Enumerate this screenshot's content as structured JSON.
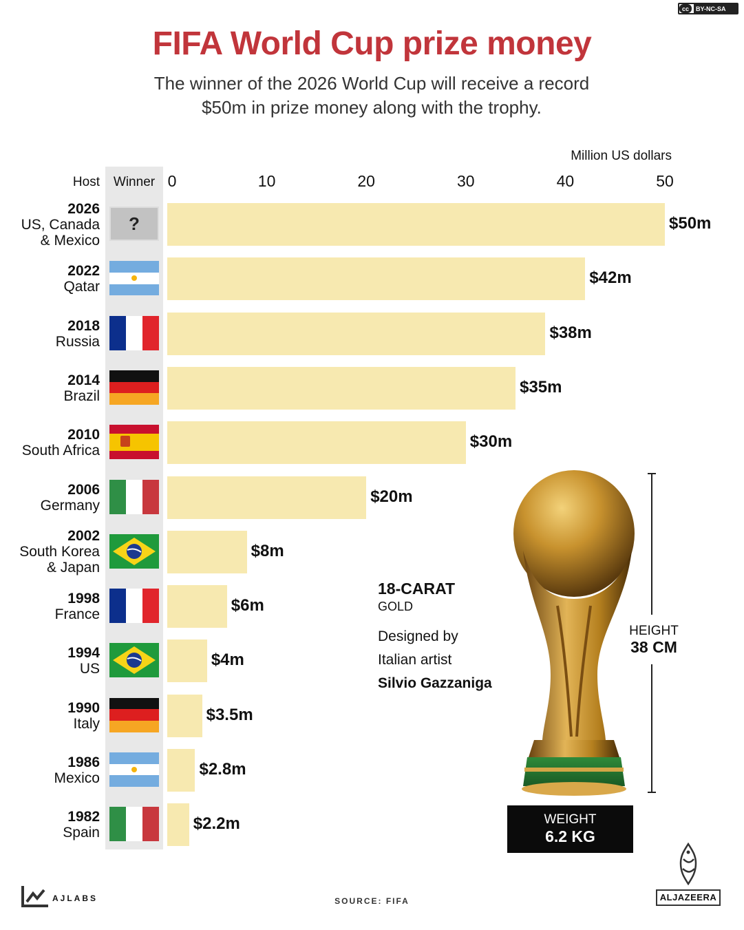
{
  "license": "BY-NC-SA",
  "title": "FIFA World Cup prize money",
  "subtitle_line1": "The winner of the 2026 World Cup will receive a record",
  "subtitle_line2": "$50m in prize money along with the trophy.",
  "headers": {
    "host": "Host",
    "winner": "Winner"
  },
  "unknown_winner": "?",
  "chart_data": {
    "type": "bar",
    "orientation": "horizontal",
    "unit_label": "Million US dollars",
    "xticks": [
      0,
      10,
      20,
      30,
      40,
      50
    ],
    "xlim": [
      0,
      50
    ],
    "grid": false,
    "rows": [
      {
        "year": "2026",
        "host_lines": [
          "US, Canada",
          "& Mexico"
        ],
        "winner": "unknown",
        "value": 50,
        "label": "$50m"
      },
      {
        "year": "2022",
        "host_lines": [
          "Qatar"
        ],
        "winner": "argentina",
        "value": 42,
        "label": "$42m"
      },
      {
        "year": "2018",
        "host_lines": [
          "Russia"
        ],
        "winner": "france",
        "value": 38,
        "label": "$38m"
      },
      {
        "year": "2014",
        "host_lines": [
          "Brazil"
        ],
        "winner": "germany",
        "value": 35,
        "label": "$35m"
      },
      {
        "year": "2010",
        "host_lines": [
          "South Africa"
        ],
        "winner": "spain",
        "value": 30,
        "label": "$30m"
      },
      {
        "year": "2006",
        "host_lines": [
          "Germany"
        ],
        "winner": "italy",
        "value": 20,
        "label": "$20m"
      },
      {
        "year": "2002",
        "host_lines": [
          "South Korea",
          "& Japan"
        ],
        "winner": "brazil",
        "value": 8,
        "label": "$8m"
      },
      {
        "year": "1998",
        "host_lines": [
          "France"
        ],
        "winner": "france",
        "value": 6,
        "label": "$6m"
      },
      {
        "year": "1994",
        "host_lines": [
          "US"
        ],
        "winner": "brazil",
        "value": 4,
        "label": "$4m"
      },
      {
        "year": "1990",
        "host_lines": [
          "Italy"
        ],
        "winner": "germany",
        "value": 3.5,
        "label": "$3.5m"
      },
      {
        "year": "1986",
        "host_lines": [
          "Mexico"
        ],
        "winner": "argentina",
        "value": 2.8,
        "label": "$2.8m"
      },
      {
        "year": "1982",
        "host_lines": [
          "Spain"
        ],
        "winner": "italy",
        "value": 2.2,
        "label": "$2.2m"
      }
    ]
  },
  "trophy": {
    "carat": "18-CARAT",
    "material": "GOLD",
    "designed_line1": "Designed by",
    "designed_line2": "Italian artist",
    "designer": "Silvio Gazzaniga",
    "height_label": "HEIGHT",
    "height_value": "38 CM",
    "weight_label": "WEIGHT",
    "weight_value": "6.2 KG"
  },
  "footer": {
    "source": "SOURCE: FIFA",
    "lab_name": "AJLABS",
    "brand": "ALJAZEERA"
  },
  "colors": {
    "title": "#c1353b",
    "bar": "#f7e9b0",
    "winner_band": "#e8e8e8"
  }
}
